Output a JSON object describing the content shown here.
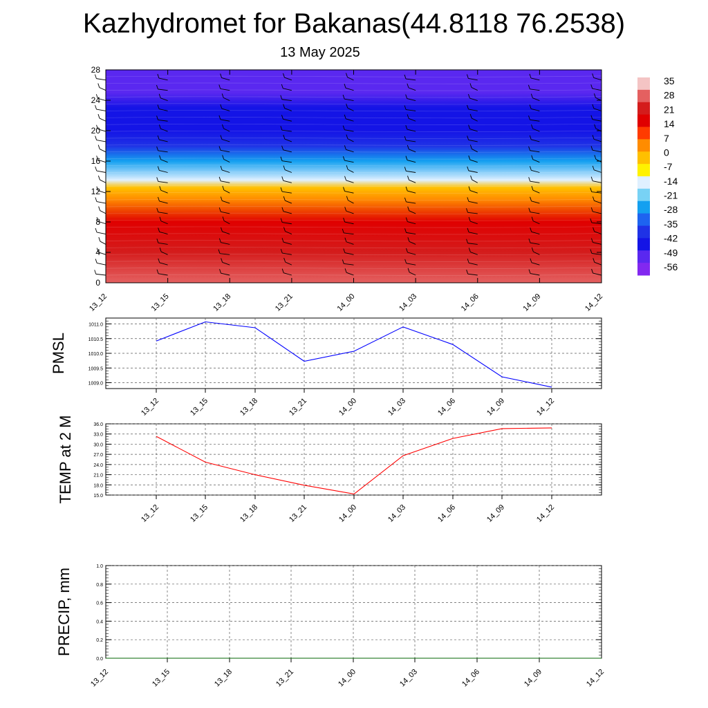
{
  "title": "Kazhydromet for Bakanas(44.8118 76.2538)",
  "subtitle": "13 May 2025",
  "chart_data": [
    {
      "type": "heatmap",
      "categories": [
        "13_12",
        "13_15",
        "13_18",
        "13_21",
        "14_00",
        "14_03",
        "14_06",
        "14_09",
        "14_12"
      ],
      "y_ticks": [
        0,
        4,
        8,
        12,
        16,
        20,
        24,
        28
      ],
      "ylim": [
        0,
        28
      ],
      "temperature_by_level": [
        {
          "level": 0,
          "value": 28
        },
        {
          "level": 4,
          "value": 21
        },
        {
          "level": 8,
          "value": 14
        },
        {
          "level": 11,
          "value": 4
        },
        {
          "level": 12.5,
          "value": -7
        },
        {
          "level": 13.5,
          "value": -18
        },
        {
          "level": 16,
          "value": -30
        },
        {
          "level": 18,
          "value": -45
        },
        {
          "level": 20,
          "value": -56
        },
        {
          "level": 23,
          "value": -50
        },
        {
          "level": 25,
          "value": -60
        },
        {
          "level": 28,
          "value": -60
        }
      ],
      "colorbar": {
        "labels": [
          "35",
          "28",
          "21",
          "14",
          "7",
          "0",
          "-7",
          "-14",
          "-21",
          "-28",
          "-35",
          "-42",
          "-49",
          "-56"
        ],
        "stops": [
          {
            "v": 38,
            "c": "#f4c4c4"
          },
          {
            "v": 33,
            "c": "#e46060"
          },
          {
            "v": 28,
            "c": "#d41c1c"
          },
          {
            "v": 21,
            "c": "#e00000"
          },
          {
            "v": 14,
            "c": "#ff3b00"
          },
          {
            "v": 7,
            "c": "#ff8c00"
          },
          {
            "v": 0,
            "c": "#ffc000"
          },
          {
            "v": -7,
            "c": "#fff200"
          },
          {
            "v": -14,
            "c": "#dff0ff"
          },
          {
            "v": -21,
            "c": "#78d2f5"
          },
          {
            "v": -28,
            "c": "#14a0f0"
          },
          {
            "v": -35,
            "c": "#1e64f0"
          },
          {
            "v": -42,
            "c": "#1f32e6"
          },
          {
            "v": -49,
            "c": "#1414e6"
          },
          {
            "v": -56,
            "c": "#5a28f0"
          },
          {
            "v": -62,
            "c": "#8228f0"
          }
        ]
      }
    },
    {
      "type": "line",
      "ylabel": "PMSL",
      "categories": [
        "13_12",
        "13_15",
        "13_18",
        "13_21",
        "14_00",
        "14_03",
        "14_06",
        "14_09",
        "14_12"
      ],
      "y_ticks": [
        "1011.0",
        "1010.5",
        "1010.0",
        "1009.5",
        "1009.0"
      ],
      "ylim": [
        1008.8,
        1011.2
      ],
      "values": [
        1010.42,
        1011.07,
        1010.87,
        1009.73,
        1010.07,
        1010.9,
        1010.3,
        1009.2,
        1008.85
      ],
      "color": "#0000ff"
    },
    {
      "type": "line",
      "ylabel": "TEMP at 2 M",
      "categories": [
        "13_12",
        "13_15",
        "13_18",
        "13_21",
        "14_00",
        "14_03",
        "14_06",
        "14_09",
        "14_12"
      ],
      "y_ticks": [
        "36.0",
        "33.0",
        "30.0",
        "27.0",
        "24.0",
        "21.0",
        "18.0",
        "15.0"
      ],
      "ylim": [
        15,
        36
      ],
      "values": [
        32.3,
        24.7,
        21.0,
        17.9,
        15.3,
        26.6,
        31.7,
        34.6,
        34.8
      ],
      "color": "#ff0000"
    },
    {
      "type": "line",
      "ylabel": "PRECIP, mm",
      "categories": [
        "13_12",
        "13_15",
        "13_18",
        "13_21",
        "14_00",
        "14_03",
        "14_06",
        "14_09",
        "14_12"
      ],
      "y_ticks": [
        "1.0",
        "0.8",
        "0.6",
        "0.4",
        "0.2",
        "0.0"
      ],
      "ylim": [
        0,
        1
      ],
      "values": [
        0,
        0,
        0,
        0,
        0,
        0,
        0,
        0,
        0
      ],
      "color": "#006400"
    }
  ]
}
